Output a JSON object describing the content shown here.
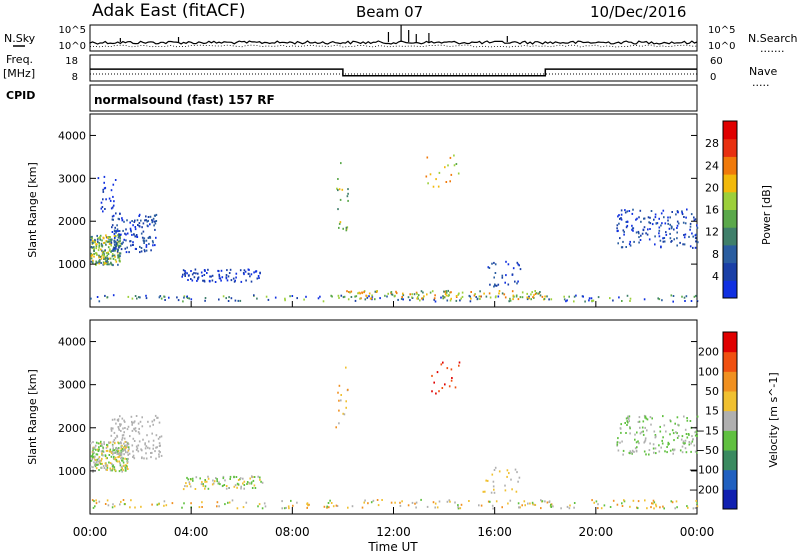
{
  "header": {
    "station": "Adak East (fitACF)",
    "beam": "Beam 07",
    "date": "10/Dec/2016"
  },
  "left_labels": {
    "nsky": "N.Sky",
    "freq": "Freq.",
    "freq_unit": "[MHz]",
    "cpid": "CPID"
  },
  "right_labels": {
    "nsearch": "N.Search",
    "nave": "Nave"
  },
  "mode_text": "normalsound (fast) 157 RF",
  "colors": {
    "power": [
      "#1030e0",
      "#1a3fa6",
      "#2a5da0",
      "#3f7f6a",
      "#5aa84a",
      "#9ccf3a",
      "#f2b90a",
      "#f07a0a",
      "#e83010",
      "#e00000"
    ],
    "velocity": [
      "#1020b0",
      "#2060c0",
      "#3a8a60",
      "#60c040",
      "#b0b0b0",
      "#f0c030",
      "#f09020",
      "#f05010",
      "#e00000"
    ],
    "line": "#000000"
  },
  "chart_data": [
    {
      "type": "line",
      "name": "noise",
      "left_axis_ticks": [
        "10^5",
        "10^0"
      ],
      "right_axis_ticks": [
        "10^5",
        "10^0"
      ]
    },
    {
      "type": "line",
      "name": "frequency",
      "ylabel": "Freq. [MHz]",
      "left_axis_ticks": [
        "18",
        "8"
      ],
      "right_axis_ticks": [
        "60",
        "0"
      ],
      "freq_segments": [
        {
          "start_hour": 0,
          "end_hour": 10,
          "value": 12.5
        },
        {
          "start_hour": 10,
          "end_hour": 18,
          "value": 9.5
        },
        {
          "start_hour": 18,
          "end_hour": 24,
          "value": 12.5
        }
      ]
    },
    {
      "type": "heatmap",
      "name": "power",
      "ylabel": "Slant Range [km]",
      "yticks": [
        "4000",
        "3000",
        "2000",
        "1000"
      ],
      "colorbar_label": "Power [dB]",
      "colorbar_ticks": [
        "28",
        "24",
        "20",
        "16",
        "12",
        "8",
        "4"
      ]
    },
    {
      "type": "heatmap",
      "name": "velocity",
      "ylabel": "Slant Range [km]",
      "yticks": [
        "4000",
        "3000",
        "2000",
        "1000"
      ],
      "colorbar_label": "Velocity [m s^-1]",
      "colorbar_ticks": [
        "200",
        "100",
        "50",
        "15",
        "−15",
        "−50",
        "−100",
        "−200"
      ]
    }
  ],
  "time_axis": {
    "ticks": [
      "00:00",
      "04:00",
      "08:00",
      "12:00",
      "16:00",
      "20:00",
      "00:00"
    ],
    "label": "Time UT"
  }
}
